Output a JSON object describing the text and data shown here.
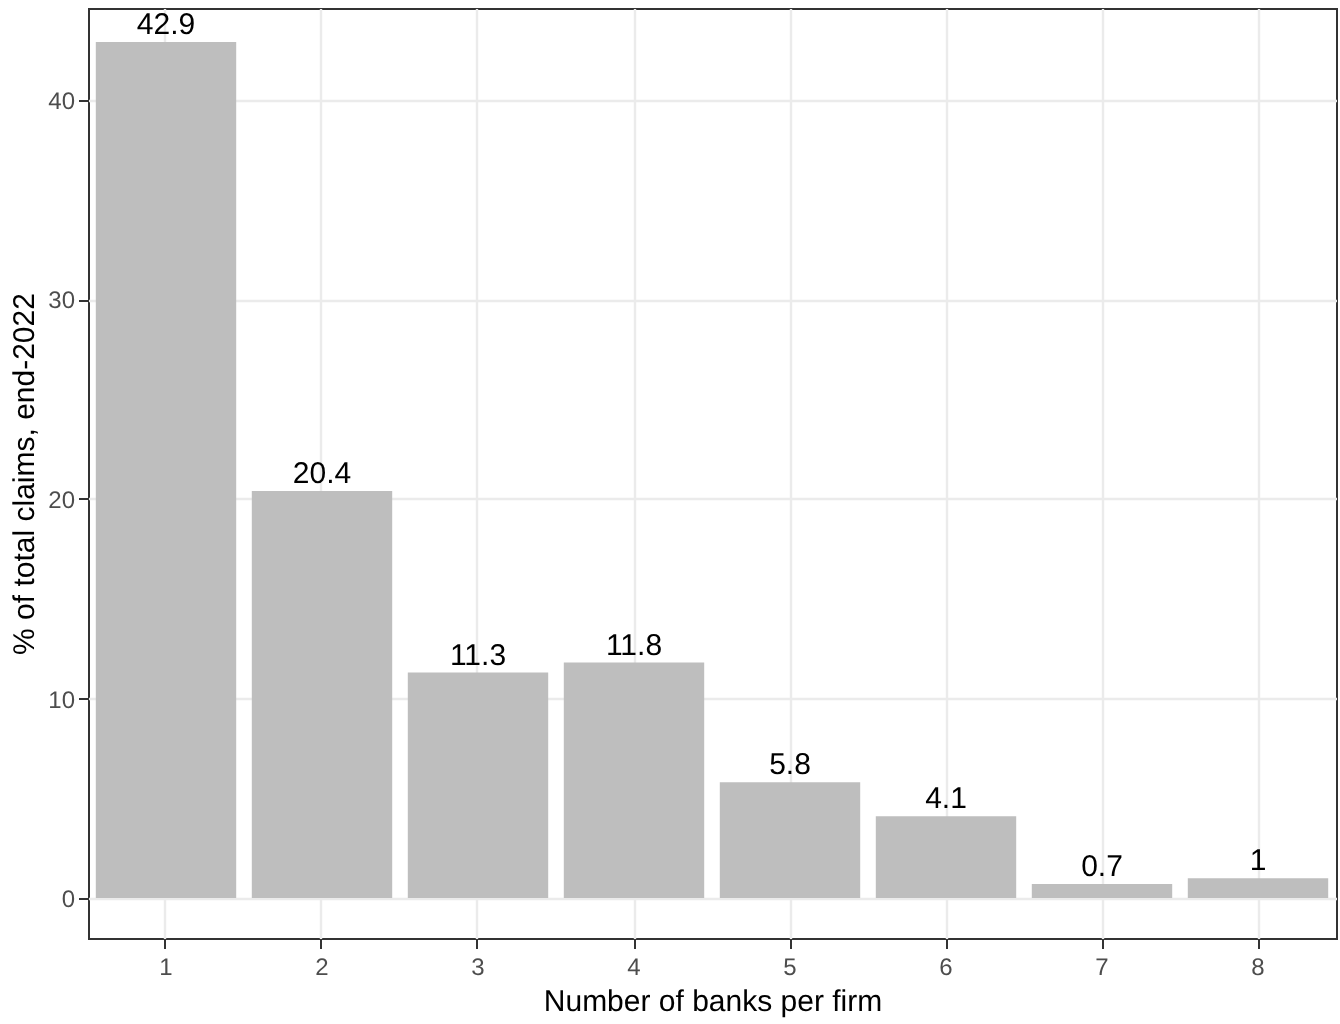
{
  "chart_data": {
    "type": "bar",
    "xlabel": "Number of banks per firm",
    "ylabel": "% of total claims, end-2022",
    "categories": [
      "1",
      "2",
      "3",
      "4",
      "5",
      "6",
      "7",
      "8"
    ],
    "values": [
      42.9,
      20.4,
      11.3,
      11.8,
      5.8,
      4.1,
      0.7,
      1
    ],
    "color": "#bebebe",
    "ylim": [
      -2,
      44.6
    ],
    "yticks": [
      0,
      10,
      20,
      30,
      40
    ],
    "grid": true,
    "data_labels": true
  }
}
